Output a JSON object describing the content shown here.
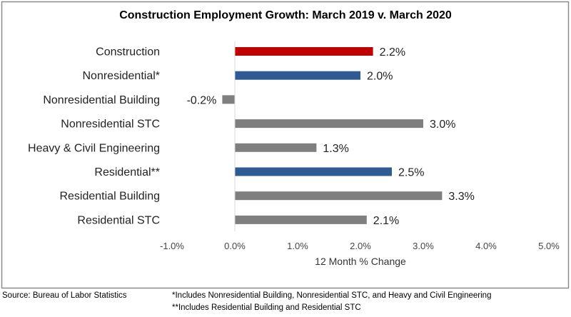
{
  "chart_data": {
    "type": "bar",
    "orientation": "horizontal",
    "title": "Construction Employment Growth: March 2019 v. March 2020",
    "xlabel": "12 Month % Change",
    "ylabel": "",
    "xlim": [
      -1.0,
      5.0
    ],
    "ticks": [
      "-1.0%",
      "0.0%",
      "1.0%",
      "2.0%",
      "3.0%",
      "4.0%",
      "5.0%"
    ],
    "tick_values": [
      -1,
      0,
      1,
      2,
      3,
      4,
      5
    ],
    "grid": false,
    "categories": [
      "Construction",
      "Nonresidential*",
      "Nonresidential Building",
      "Nonresidential STC",
      "Heavy & Civil Engineering",
      "Residential**",
      "Residential Building",
      "Residential STC"
    ],
    "values": [
      2.2,
      2.0,
      -0.2,
      3.0,
      1.3,
      2.5,
      3.3,
      2.1
    ],
    "labels": [
      "2.2%",
      "2.0%",
      "-0.2%",
      "3.0%",
      "1.3%",
      "2.5%",
      "3.3%",
      "2.1%"
    ],
    "colors": [
      "#c00000",
      "#2f5b94",
      "#7f7f7f",
      "#7f7f7f",
      "#7f7f7f",
      "#2f5b94",
      "#7f7f7f",
      "#7f7f7f"
    ]
  },
  "footer": {
    "source": "Source:  Bureau of Labor Statistics",
    "note1": "*Includes Nonresidential Building, Nonresidential STC, and Heavy and Civil Engineering",
    "note2": "**Includes Residential Building and Residential STC"
  }
}
